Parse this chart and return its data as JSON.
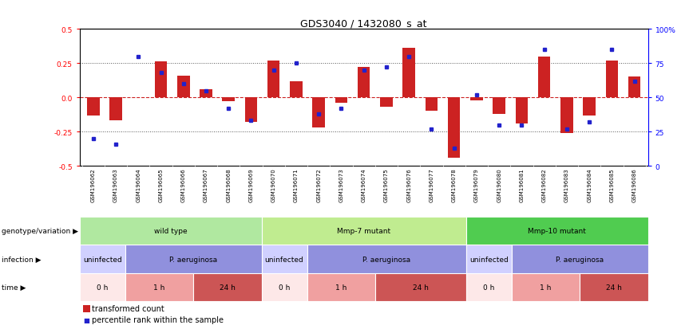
{
  "title": "GDS3040 / 1432080_s_at",
  "samples": [
    "GSM196062",
    "GSM196063",
    "GSM196064",
    "GSM196065",
    "GSM196066",
    "GSM196067",
    "GSM196068",
    "GSM196069",
    "GSM196070",
    "GSM196071",
    "GSM196072",
    "GSM196073",
    "GSM196074",
    "GSM196075",
    "GSM196076",
    "GSM196077",
    "GSM196078",
    "GSM196079",
    "GSM196080",
    "GSM196081",
    "GSM196082",
    "GSM196083",
    "GSM196084",
    "GSM196085",
    "GSM196086"
  ],
  "red_bars": [
    -0.13,
    -0.17,
    0.0,
    0.26,
    0.16,
    0.06,
    -0.03,
    -0.18,
    0.27,
    0.12,
    -0.22,
    -0.04,
    0.22,
    -0.07,
    0.36,
    -0.1,
    -0.44,
    -0.02,
    -0.12,
    -0.19,
    0.3,
    -0.26,
    -0.13,
    0.27,
    0.15
  ],
  "blue_dots": [
    20,
    16,
    80,
    68,
    60,
    55,
    42,
    33,
    70,
    75,
    38,
    42,
    70,
    72,
    80,
    27,
    13,
    52,
    30,
    30,
    85,
    27,
    32,
    85,
    62
  ],
  "genotype_groups": [
    {
      "label": "wild type",
      "start": 0,
      "end": 8,
      "color": "#b0e8a0"
    },
    {
      "label": "Mmp-7 mutant",
      "start": 8,
      "end": 17,
      "color": "#c0ec90"
    },
    {
      "label": "Mmp-10 mutant",
      "start": 17,
      "end": 25,
      "color": "#50cc50"
    }
  ],
  "infection_groups": [
    {
      "label": "uninfected",
      "start": 0,
      "end": 2,
      "color": "#d0d0ff"
    },
    {
      "label": "P. aeruginosa",
      "start": 2,
      "end": 8,
      "color": "#9090dd"
    },
    {
      "label": "uninfected",
      "start": 8,
      "end": 10,
      "color": "#d0d0ff"
    },
    {
      "label": "P. aeruginosa",
      "start": 10,
      "end": 17,
      "color": "#9090dd"
    },
    {
      "label": "uninfected",
      "start": 17,
      "end": 19,
      "color": "#d0d0ff"
    },
    {
      "label": "P. aeruginosa",
      "start": 19,
      "end": 25,
      "color": "#9090dd"
    }
  ],
  "time_groups": [
    {
      "label": "0 h",
      "start": 0,
      "end": 2,
      "color": "#fde8e8"
    },
    {
      "label": "1 h",
      "start": 2,
      "end": 5,
      "color": "#f0a0a0"
    },
    {
      "label": "24 h",
      "start": 5,
      "end": 8,
      "color": "#cc5555"
    },
    {
      "label": "0 h",
      "start": 8,
      "end": 10,
      "color": "#fde8e8"
    },
    {
      "label": "1 h",
      "start": 10,
      "end": 13,
      "color": "#f0a0a0"
    },
    {
      "label": "24 h",
      "start": 13,
      "end": 17,
      "color": "#cc5555"
    },
    {
      "label": "0 h",
      "start": 17,
      "end": 19,
      "color": "#fde8e8"
    },
    {
      "label": "1 h",
      "start": 19,
      "end": 22,
      "color": "#f0a0a0"
    },
    {
      "label": "24 h",
      "start": 22,
      "end": 25,
      "color": "#cc5555"
    }
  ],
  "ylim": [
    -0.5,
    0.5
  ],
  "yticks": [
    -0.5,
    -0.25,
    0.0,
    0.25,
    0.5
  ],
  "right_yticks": [
    0,
    25,
    50,
    75,
    100
  ],
  "bar_color": "#cc2222",
  "dot_color": "#2222cc",
  "legend_bar_color": "#cc2222",
  "legend_dot_color": "#2222cc",
  "legend_bar_label": "transformed count",
  "legend_dot_label": "percentile rank within the sample",
  "zero_line_color": "#cc2222",
  "dotted_line_color": "#555555",
  "title_fontsize": 9,
  "row_labels": [
    "genotype/variation",
    "infection",
    "time"
  ],
  "arrow": "▶"
}
